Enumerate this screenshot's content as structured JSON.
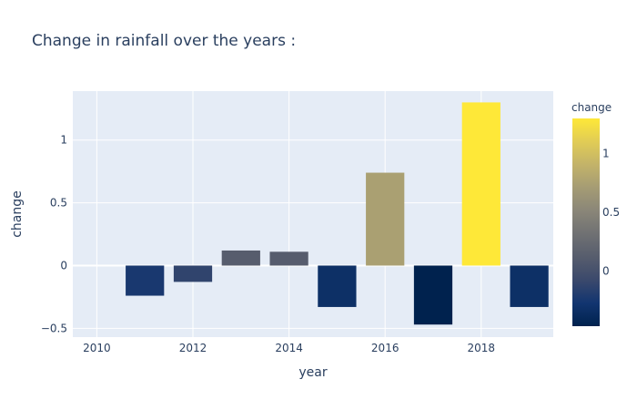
{
  "chart_data": {
    "type": "bar",
    "title": "Change in rainfall over the years :",
    "xlabel": "year",
    "ylabel": "change",
    "x": [
      2011,
      2012,
      2013,
      2014,
      2015,
      2016,
      2017,
      2018,
      2019
    ],
    "values": [
      -0.24,
      -0.13,
      0.12,
      0.11,
      -0.33,
      0.74,
      -0.47,
      1.3,
      -0.33
    ],
    "xlim": [
      2009.5,
      2019.5
    ],
    "ylim": [
      -0.57,
      1.39
    ],
    "xticks": [
      2010,
      2012,
      2014,
      2016,
      2018
    ],
    "xtick_labels": [
      "2010",
      "2012",
      "2014",
      "2016",
      "2018"
    ],
    "yticks": [
      -0.5,
      0,
      0.5,
      1
    ],
    "ytick_labels": [
      "−0.5",
      "0",
      "0.5",
      "1"
    ],
    "grid": true,
    "colorbar": {
      "title": "change",
      "range": [
        -0.47,
        1.3
      ],
      "ticks": [
        0,
        0.5,
        1
      ],
      "tick_labels": [
        "0",
        "0.5",
        "1"
      ],
      "colorscale": [
        "#00224e",
        "#123570",
        "#3b496c",
        "#575d6d",
        "#707173",
        "#8a8678",
        "#a59c74",
        "#c3b369",
        "#e1cc55",
        "#fee838"
      ]
    },
    "colors": {
      "plot_bg": "#e5ecf6",
      "grid": "#ffffff",
      "text": "#2a3f5f"
    }
  }
}
